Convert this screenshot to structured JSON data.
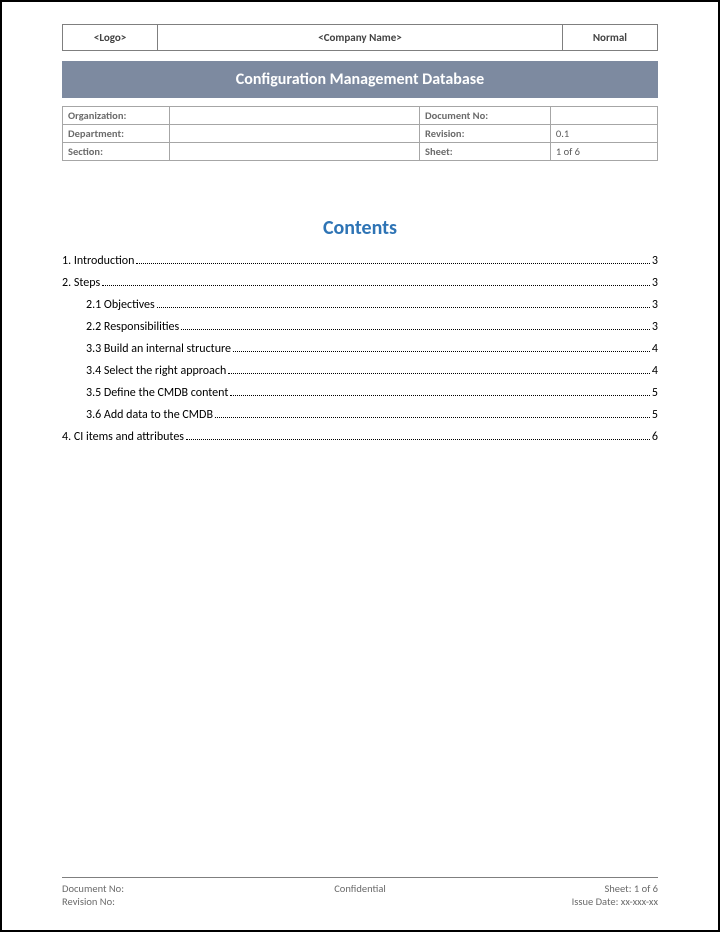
{
  "header": {
    "logo": "<Logo>",
    "company": "<Company Name>",
    "status": "Normal"
  },
  "title": "Configuration Management Database",
  "meta": {
    "rows": [
      {
        "l1": "Organization:",
        "v1": "",
        "l2": "Document No:",
        "v2": ""
      },
      {
        "l1": "Department:",
        "v1": "",
        "l2": "Revision:",
        "v2": "0.1"
      },
      {
        "l1": "Section:",
        "v1": "",
        "l2": "Sheet:",
        "v2": "1 of 6"
      }
    ]
  },
  "contents_title": "Contents",
  "toc": [
    {
      "label": "1. Introduction",
      "page": "3",
      "indent": false
    },
    {
      "label": "2. Steps",
      "page": "3",
      "indent": false
    },
    {
      "label": "2.1 Objectives",
      "page": "3",
      "indent": true
    },
    {
      "label": "2.2 Responsibilities",
      "page": "3",
      "indent": true
    },
    {
      "label": "3.3 Build an internal structure",
      "page": "4",
      "indent": true
    },
    {
      "label": "3.4 Select the right approach",
      "page": "4",
      "indent": true
    },
    {
      "label": "3.5 Define the CMDB content",
      "page": "5",
      "indent": true
    },
    {
      "label": "3.6 Add data to the CMDB",
      "page": "5",
      "indent": true
    },
    {
      "label": "4. CI items and attributes",
      "page": "6",
      "indent": false
    }
  ],
  "footer": {
    "doc_no_label": "Document No:",
    "confidential": "Confidential",
    "sheet": "Sheet: 1 of 6",
    "rev_label": "Revision No:",
    "issue": "Issue Date: xx-xxx-xx"
  },
  "colors": {
    "title_bar_bg": "#7d8aa0",
    "title_bar_text": "#ffffff",
    "contents_title": "#2e74b5",
    "border": "#7f7f7f",
    "meta_border": "#a6a6a6",
    "label_text": "#6b6b6b"
  },
  "typography": {
    "base_font": "Calibri",
    "title_size_pt": 16,
    "contents_title_size_pt": 20,
    "body_size_pt": 12,
    "meta_size_pt": 10.5
  }
}
